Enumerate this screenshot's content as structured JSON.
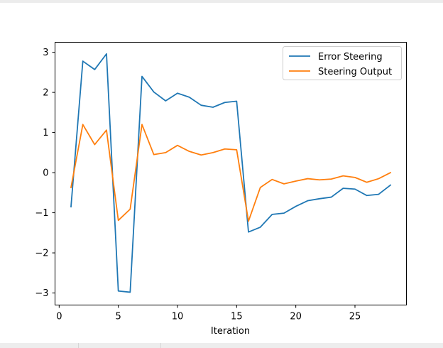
{
  "chart_data": {
    "type": "line",
    "xlabel": "Iteration",
    "ylabel": "",
    "xlim": [
      -0.35,
      29.35
    ],
    "ylim": [
      -3.3,
      3.25
    ],
    "xticks": [
      0,
      5,
      10,
      15,
      20,
      25
    ],
    "yticks": [
      -3,
      -2,
      -1,
      0,
      1,
      2,
      3
    ],
    "x": [
      1,
      2,
      3,
      4,
      5,
      6,
      7,
      8,
      9,
      10,
      11,
      12,
      13,
      14,
      15,
      16,
      17,
      18,
      19,
      20,
      21,
      22,
      23,
      24,
      25,
      26,
      27,
      28
    ],
    "series": [
      {
        "name": "Error Steering",
        "color": "#1f77b4",
        "values": [
          -0.85,
          2.78,
          2.57,
          2.96,
          -2.95,
          -2.98,
          2.4,
          2.01,
          1.79,
          1.98,
          1.88,
          1.68,
          1.63,
          1.75,
          1.78,
          -1.48,
          -1.36,
          -1.04,
          -1.01,
          -0.84,
          -0.7,
          -0.65,
          -0.61,
          -0.39,
          -0.41,
          -0.57,
          -0.54,
          -0.31
        ]
      },
      {
        "name": "Steering Output",
        "color": "#ff7f0e",
        "values": [
          -0.37,
          1.2,
          0.7,
          1.06,
          -1.19,
          -0.91,
          1.2,
          0.45,
          0.5,
          0.68,
          0.53,
          0.44,
          0.5,
          0.59,
          0.57,
          -1.21,
          -0.37,
          -0.17,
          -0.28,
          -0.21,
          -0.15,
          -0.18,
          -0.16,
          -0.08,
          -0.12,
          -0.24,
          -0.15,
          0.0
        ]
      }
    ],
    "legend": "top-right",
    "grid": false
  }
}
